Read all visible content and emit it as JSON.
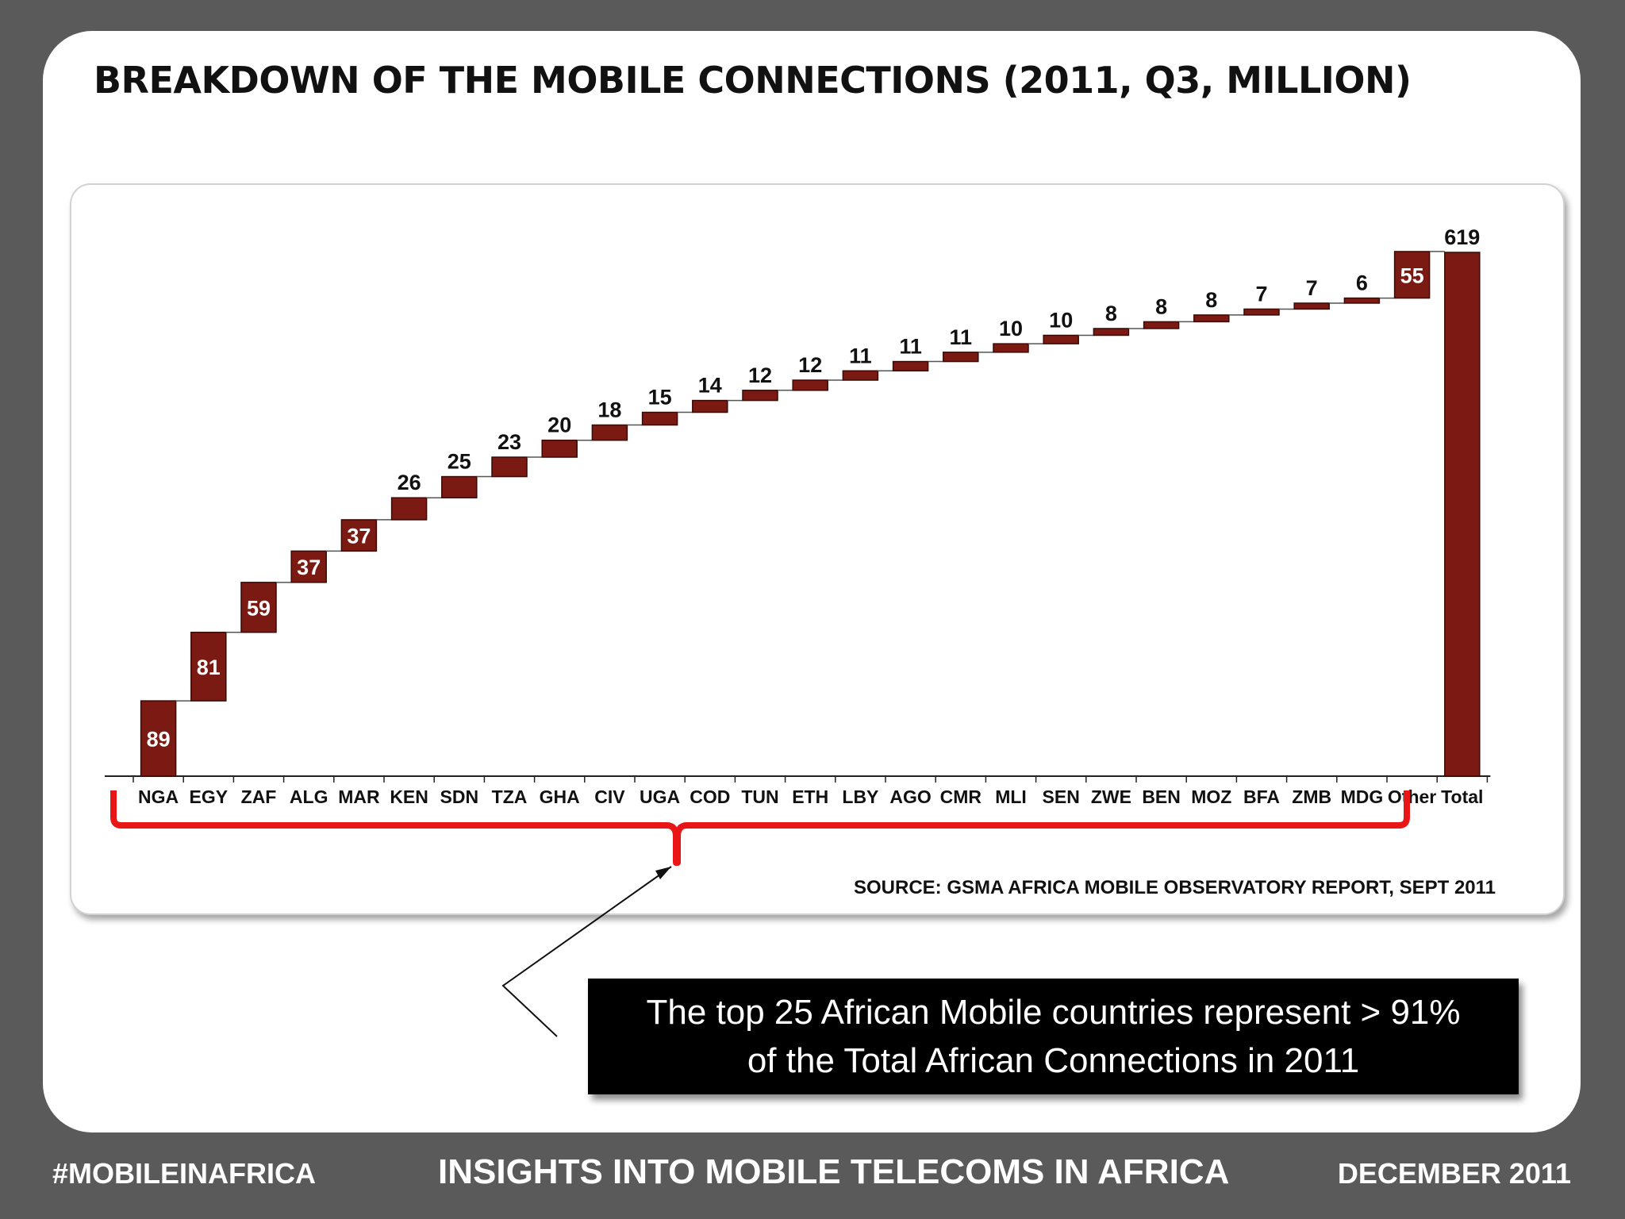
{
  "title": "BREAKDOWN OF THE MOBILE CONNECTIONS (2011, Q3, MILLION)",
  "source": "SOURCE: GSMA AFRICA MOBILE OBSERVATORY REPORT, SEPT 2011",
  "callout": {
    "line1": "The top 25 African Mobile countries represent > 91%",
    "line2": "of the Total African Connections in 2011"
  },
  "footer": {
    "left": "#MOBILEINAFRICA",
    "center": "INSIGHTS INTO MOBILE TELECOMS IN AFRICA",
    "right": "DECEMBER 2011"
  },
  "colors": {
    "bar": "#7b1a12",
    "bracket": "#e81616",
    "background": "#5a5a5b"
  },
  "chart_data": {
    "type": "bar",
    "subtype": "waterfall",
    "categories": [
      "NGA",
      "EGY",
      "ZAF",
      "ALG",
      "MAR",
      "KEN",
      "SDN",
      "TZA",
      "GHA",
      "CIV",
      "UGA",
      "COD",
      "TUN",
      "ETH",
      "LBY",
      "AGO",
      "CMR",
      "MLI",
      "SEN",
      "ZWE",
      "BEN",
      "MOZ",
      "BFA",
      "ZMB",
      "MDG",
      "Other",
      "Total"
    ],
    "values": [
      89,
      81,
      59,
      37,
      37,
      26,
      25,
      23,
      20,
      18,
      15,
      14,
      12,
      12,
      11,
      11,
      11,
      10,
      10,
      8,
      8,
      8,
      7,
      7,
      6,
      55,
      619
    ],
    "total_category": "Total",
    "ylim": [
      0,
      619
    ],
    "grid": false,
    "legend": "none"
  }
}
